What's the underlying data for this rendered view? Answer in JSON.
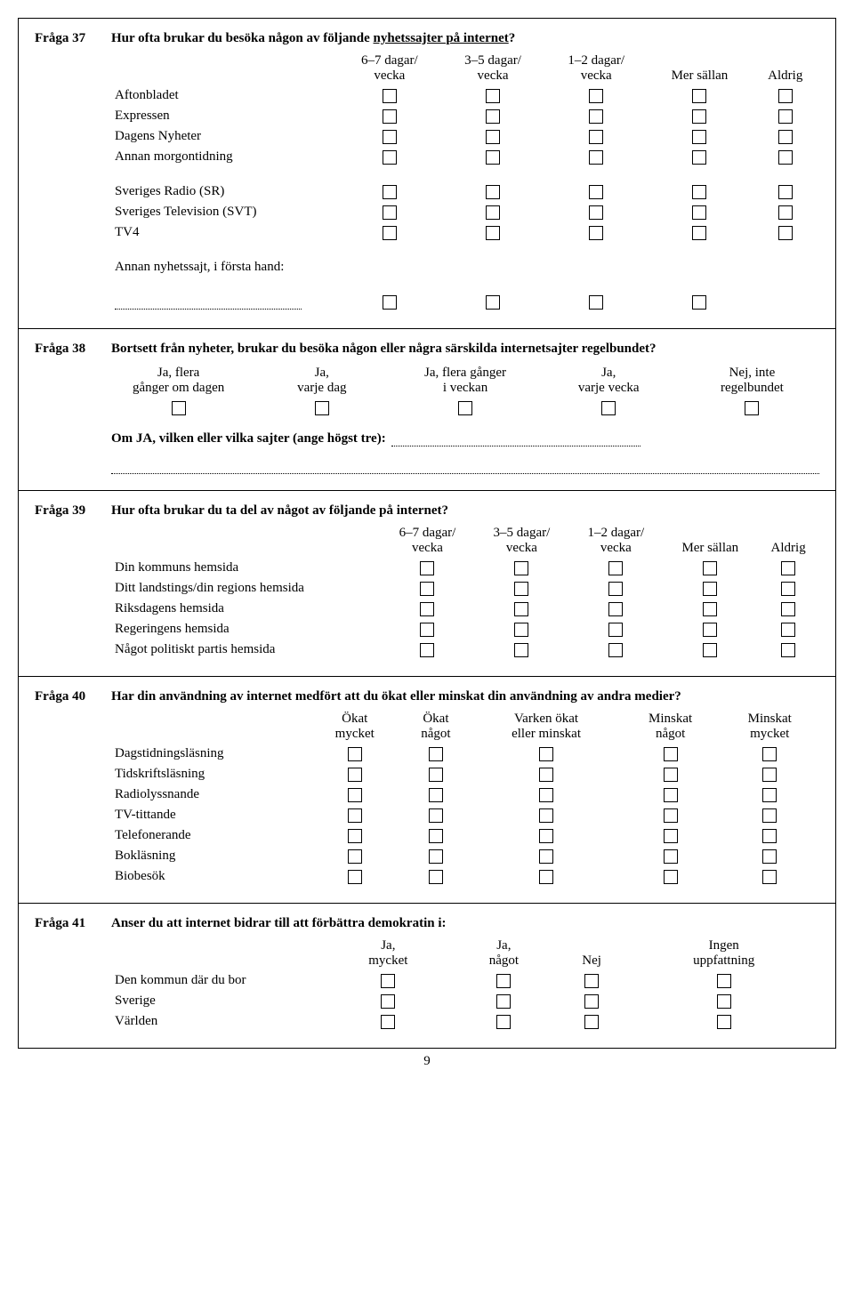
{
  "page_number": "9",
  "q37": {
    "num": "Fråga 37",
    "text_pre": "Hur ofta brukar du besöka någon av följande ",
    "text_underlined": "nyhetssajter på internet",
    "text_post": "?",
    "headers": [
      "6–7 dagar/\nvecka",
      "3–5 dagar/\nvecka",
      "1–2 dagar/\nvecka",
      "Mer sällan",
      "Aldrig"
    ],
    "rows_group1": [
      "Aftonbladet",
      "Expressen",
      "Dagens Nyheter",
      "Annan morgontidning"
    ],
    "rows_group2": [
      "Sveriges Radio (SR)",
      "Sveriges Television (SVT)",
      "TV4"
    ],
    "other_label": "Annan nyhetssajt, i första hand:"
  },
  "q38": {
    "num": "Fråga 38",
    "text": "Bortsett från nyheter, brukar du besöka någon eller några särskilda internetsajter regelbundet?",
    "opts": [
      {
        "top": "Ja, flera",
        "bottom": "gånger om dagen"
      },
      {
        "top": "Ja,",
        "bottom": "varje dag"
      },
      {
        "top": "Ja, flera gånger",
        "bottom": "i veckan"
      },
      {
        "top": "Ja,",
        "bottom": "varje vecka"
      },
      {
        "top": "Nej, inte",
        "bottom": "regelbundet"
      }
    ],
    "followup": "Om JA, vilken eller vilka sajter (ange högst tre):"
  },
  "q39": {
    "num": "Fråga 39",
    "text": "Hur ofta brukar du ta del av något av följande på internet?",
    "headers": [
      "6–7 dagar/\nvecka",
      "3–5 dagar/\nvecka",
      "1–2 dagar/\nvecka",
      "Mer sällan",
      "Aldrig"
    ],
    "rows": [
      "Din kommuns hemsida",
      "Ditt landstings/din regions hemsida",
      "Riksdagens hemsida",
      "Regeringens hemsida",
      "Något politiskt partis hemsida"
    ]
  },
  "q40": {
    "num": "Fråga 40",
    "text": "Har din användning av internet medfört att du ökat eller minskat din användning av andra medier?",
    "headers": [
      "Ökat\nmycket",
      "Ökat\nnågot",
      "Varken ökat\neller minskat",
      "Minskat\nnågot",
      "Minskat\nmycket"
    ],
    "rows": [
      "Dagstidningsläsning",
      "Tidskriftsläsning",
      "Radiolyssnande",
      "TV-tittande",
      "Telefonerande",
      "Bokläsning",
      "Biobesök"
    ]
  },
  "q41": {
    "num": "Fråga 41",
    "text": "Anser du att internet bidrar till att förbättra demokratin i:",
    "headers": [
      "Ja,\nmycket",
      "Ja,\nnågot",
      "Nej",
      "Ingen\nuppfattning"
    ],
    "rows": [
      "Den kommun där du bor",
      "Sverige",
      "Världen"
    ]
  }
}
